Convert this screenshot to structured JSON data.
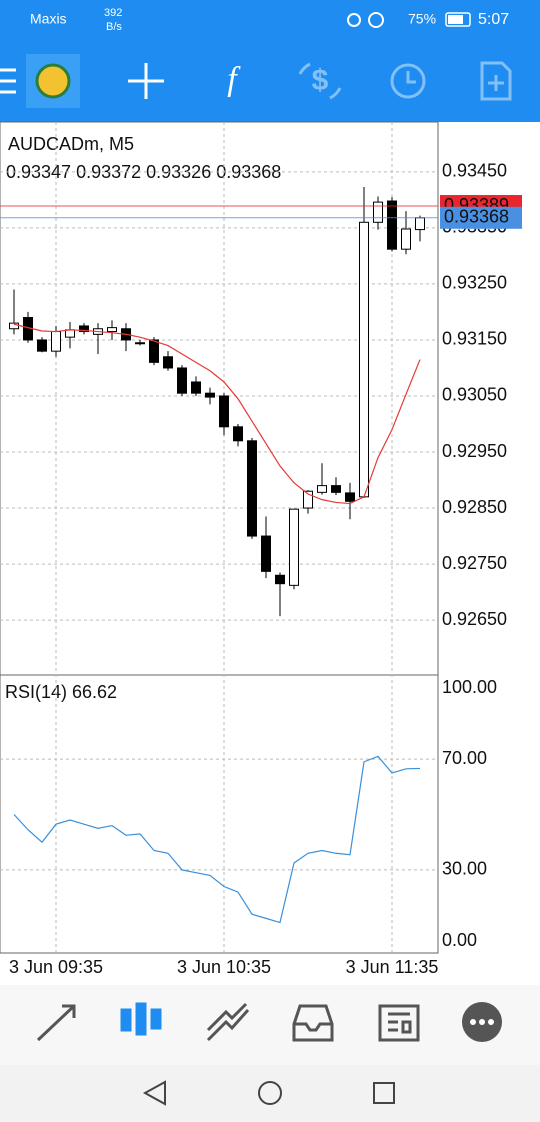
{
  "status_bar": {
    "carrier": "Maxis",
    "speed": "392",
    "speed_unit": "B/s",
    "battery": "75%",
    "time": "5:07"
  },
  "chart_data": [
    {
      "type": "candlestick",
      "title": "AUDCADm, M5",
      "subtitle": "0.93347 0.93372 0.93326 0.93368",
      "categories": [
        null,
        null,
        null,
        "3 Jun 09:35",
        null,
        null,
        null,
        null,
        null,
        null,
        null,
        null,
        null,
        null,
        null,
        "3 Jun 10:35",
        null,
        null,
        null,
        null,
        null,
        null,
        null,
        null,
        null,
        null,
        null,
        "3 Jun 11:35",
        null,
        null
      ],
      "open": [
        0.9317,
        0.9319,
        0.9315,
        0.9313,
        0.93155,
        0.93175,
        0.9316,
        0.93165,
        0.9317,
        0.93145,
        0.9315,
        0.9312,
        0.931,
        0.93075,
        0.93055,
        0.9305,
        0.92995,
        0.9297,
        0.928,
        0.9273,
        0.92712,
        0.9285,
        0.92878,
        0.9289,
        0.92877,
        0.9287,
        0.9336,
        0.93398,
        0.93312,
        0.93347
      ],
      "high": [
        0.9324,
        0.932,
        0.93155,
        0.93175,
        0.93182,
        0.9318,
        0.9318,
        0.93185,
        0.9318,
        0.9315,
        0.93155,
        0.9313,
        0.93105,
        0.93085,
        0.93065,
        0.93055,
        0.93,
        0.92975,
        0.92835,
        0.92735,
        0.92848,
        0.92882,
        0.9293,
        0.92905,
        0.92895,
        0.93423,
        0.93406,
        0.93405,
        0.9338,
        0.93372
      ],
      "low": [
        0.9316,
        0.93145,
        0.93128,
        0.9312,
        0.93135,
        0.9316,
        0.93125,
        0.9315,
        0.9313,
        0.9314,
        0.93105,
        0.93095,
        0.9305,
        0.9305,
        0.93035,
        0.9298,
        0.9296,
        0.92795,
        0.92725,
        0.92657,
        0.92705,
        0.9284,
        0.92874,
        0.92873,
        0.9283,
        0.92868,
        0.93347,
        0.93308,
        0.93303,
        0.93326
      ],
      "close": [
        0.9318,
        0.9315,
        0.9313,
        0.93165,
        0.93168,
        0.93165,
        0.9317,
        0.93172,
        0.9315,
        0.93145,
        0.9311,
        0.931,
        0.93055,
        0.93055,
        0.93048,
        0.92995,
        0.9297,
        0.928,
        0.92737,
        0.92715,
        0.92848,
        0.9288,
        0.9289,
        0.92878,
        0.92862,
        0.9336,
        0.93396,
        0.93312,
        0.93348,
        0.93368
      ],
      "up_color": "#ffffff",
      "down_color": "#000000",
      "moving_average": {
        "color": "#e53935",
        "values": [
          0.93178,
          0.93172,
          0.93166,
          0.93165,
          0.93168,
          0.93167,
          0.93165,
          0.93163,
          0.9316,
          0.93155,
          0.93148,
          0.9314,
          0.93125,
          0.9311,
          0.93095,
          0.93075,
          0.93045,
          0.93005,
          0.92965,
          0.92925,
          0.92895,
          0.92875,
          0.92865,
          0.9286,
          0.92858,
          0.9287,
          0.9294,
          0.9299,
          0.93053,
          0.93115
        ]
      },
      "ask_line": {
        "value": 0.93389,
        "label": "0.93389",
        "color": "#e8262b"
      },
      "bid_line": {
        "value": 0.93368,
        "label": "0.93368",
        "color": "#4a90e2"
      },
      "ylim": [
        0.92552,
        0.93539
      ],
      "yticks": [
        {
          "value": 0.9345,
          "label": "0.93450"
        },
        {
          "value": 0.9335,
          "label": "0.93350"
        },
        {
          "value": 0.9325,
          "label": "0.93250"
        },
        {
          "value": 0.9315,
          "label": "0.93150"
        },
        {
          "value": 0.9305,
          "label": "0.93050"
        },
        {
          "value": 0.9295,
          "label": "0.92950"
        },
        {
          "value": 0.9285,
          "label": "0.92850"
        },
        {
          "value": 0.9275,
          "label": "0.92750"
        },
        {
          "value": 0.9265,
          "label": "0.92650"
        }
      ],
      "grid": true
    },
    {
      "type": "line",
      "title": "RSI(14) 66.62",
      "color": "#3a8fd9",
      "values": [
        50,
        44.5,
        40,
        46.5,
        48,
        46.5,
        45,
        46,
        42.5,
        43,
        37,
        36,
        30,
        29,
        28,
        24,
        22,
        14,
        12.5,
        11,
        32.5,
        36,
        37,
        36,
        35.5,
        69,
        71,
        65,
        66.5,
        66.62
      ],
      "ylim": [
        0,
        100
      ],
      "yticks": [
        {
          "value": 100,
          "label": "100.00"
        },
        {
          "value": 70,
          "label": "70.00"
        },
        {
          "value": 30,
          "label": "30.00"
        },
        {
          "value": 0,
          "label": "0.00"
        }
      ],
      "grid": true
    }
  ]
}
